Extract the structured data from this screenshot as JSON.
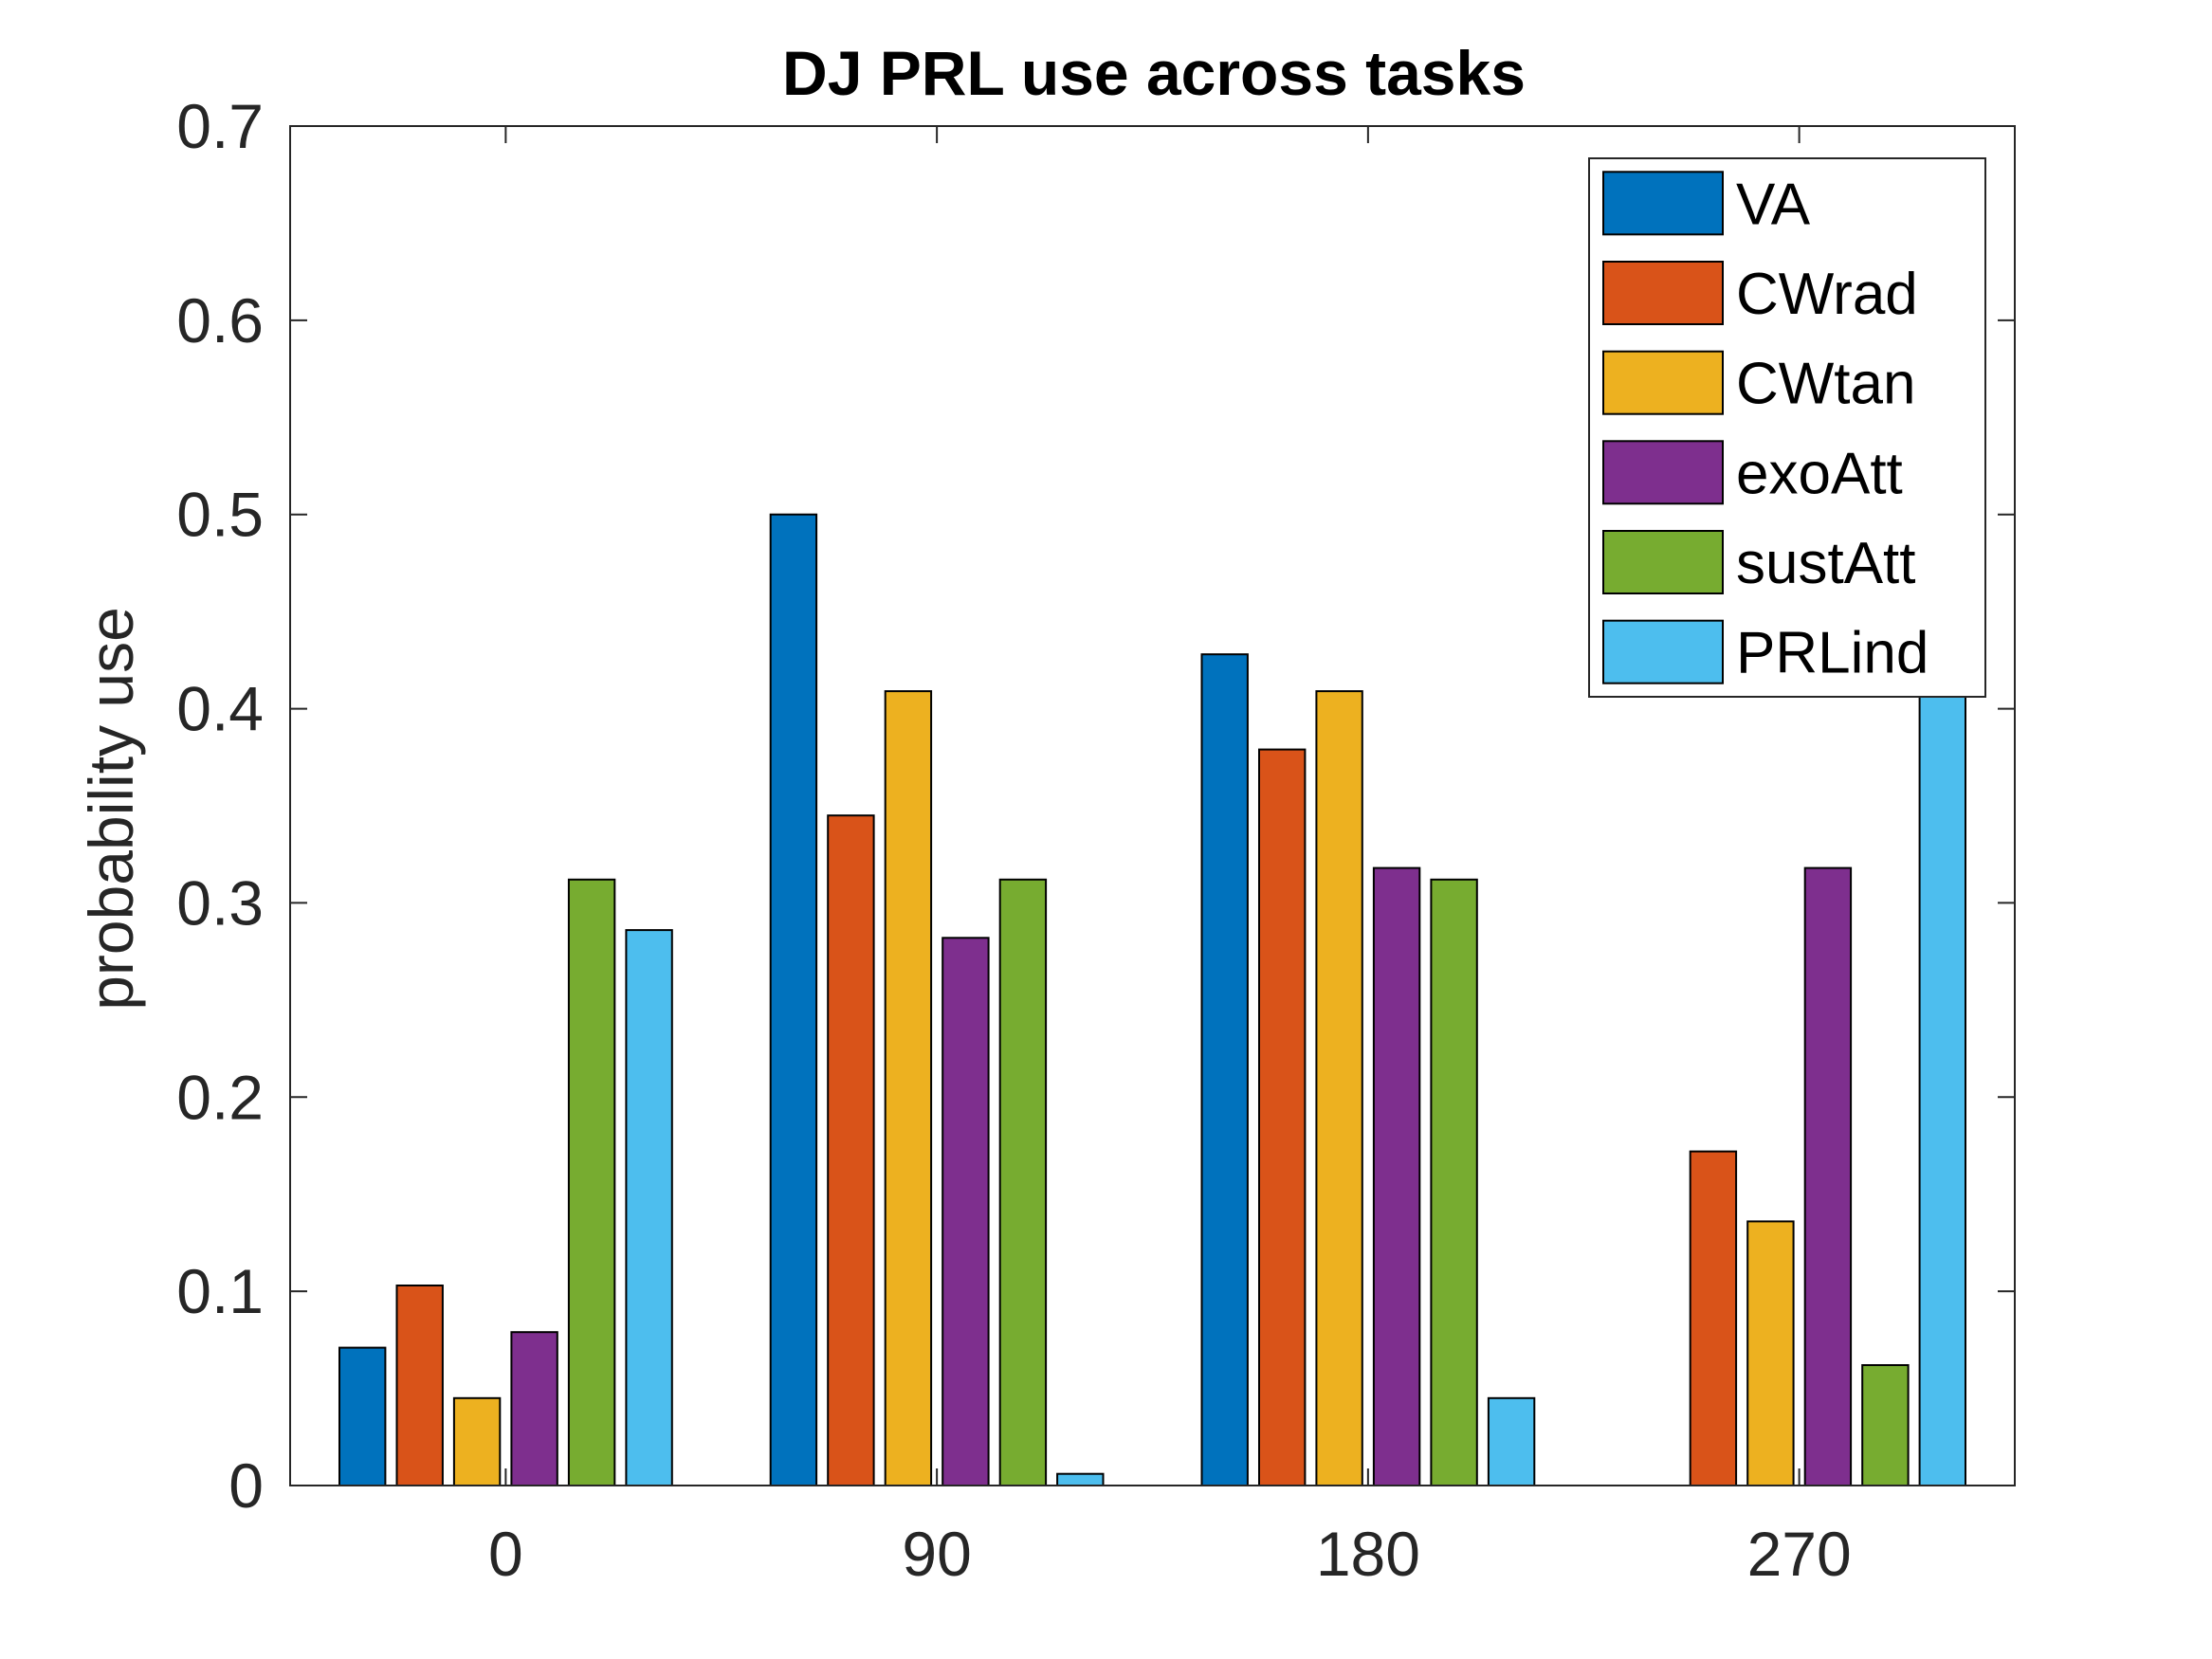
{
  "chart_data": {
    "type": "bar",
    "title": "DJ PRL use across tasks",
    "xlabel": "",
    "ylabel": "probability use",
    "categories": [
      "0",
      "90",
      "180",
      "270"
    ],
    "ylim": [
      0,
      0.7
    ],
    "yticks": [
      "0",
      "0.1",
      "0.2",
      "0.3",
      "0.4",
      "0.5",
      "0.6",
      "0.7"
    ],
    "grid": false,
    "legend_position": "top-right",
    "series": [
      {
        "name": "VA",
        "color": "#0072BD",
        "values": [
          0.071,
          0.5,
          0.428,
          0.0
        ]
      },
      {
        "name": "CWrad",
        "color": "#D95319",
        "values": [
          0.103,
          0.345,
          0.379,
          0.172
        ]
      },
      {
        "name": "CWtan",
        "color": "#EDB120",
        "values": [
          0.045,
          0.409,
          0.409,
          0.136
        ]
      },
      {
        "name": "exoAtt",
        "color": "#7E2F8E",
        "values": [
          0.079,
          0.282,
          0.318,
          0.318
        ]
      },
      {
        "name": "sustAtt",
        "color": "#77AC30",
        "values": [
          0.312,
          0.312,
          0.312,
          0.062
        ]
      },
      {
        "name": "PRLind",
        "color": "#4DBEEE",
        "values": [
          0.286,
          0.006,
          0.045,
          0.43
        ]
      }
    ]
  }
}
